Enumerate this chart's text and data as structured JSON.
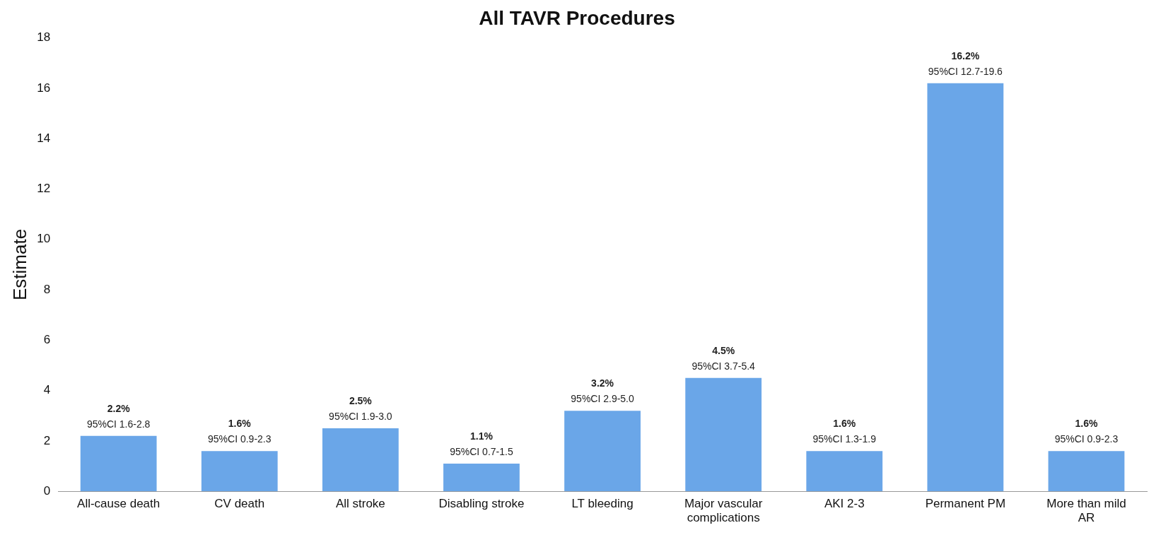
{
  "chart_data": {
    "type": "bar",
    "title": "All TAVR Procedures",
    "ylabel": "Estimate",
    "categories": [
      "All-cause death",
      "CV death",
      "All stroke",
      "Disabling stroke",
      "LT bleeding",
      "Major vascular complications",
      "AKI 2-3",
      "Permanent PM",
      "More than mild AR"
    ],
    "values": [
      2.2,
      1.6,
      2.5,
      1.1,
      3.2,
      4.5,
      1.6,
      16.2,
      1.6
    ],
    "value_labels": [
      "2.2%",
      "1.6%",
      "2.5%",
      "1.1%",
      "3.2%",
      "4.5%",
      "1.6%",
      "16.2%",
      "1.6%"
    ],
    "annotations": [
      {
        "text": "95%CI 1.6-2.8",
        "x": "All-cause death",
        "y": 2.2
      },
      {
        "text": "95%CI 0.9-2.3",
        "x": "CV death",
        "y": 1.6
      },
      {
        "text": "95%CI 1.9-3.0",
        "x": "All stroke",
        "y": 2.5
      },
      {
        "text": "95%CI 0.7-1.5",
        "x": "Disabling stroke",
        "y": 1.1
      },
      {
        "text": "95%CI 2.9-5.0",
        "x": "LT bleeding",
        "y": 3.2
      },
      {
        "text": "95%CI 3.7-5.4",
        "x": "Major vascular complications",
        "y": 4.5
      },
      {
        "text": "95%CI 1.3-1.9",
        "x": "AKI 2-3",
        "y": 1.6
      },
      {
        "text": "95%CI 12.7-19.6",
        "x": "Permanent PM",
        "y": 16.2
      },
      {
        "text": "95%CI 0.9-2.3",
        "x": "More than mild AR",
        "y": 1.6
      }
    ],
    "color": "#6aa6e8",
    "ylim": [
      0,
      18
    ],
    "yticks": [
      0,
      2,
      4,
      6,
      8,
      10,
      12,
      14,
      16,
      18
    ],
    "grid": false,
    "legend": false
  }
}
